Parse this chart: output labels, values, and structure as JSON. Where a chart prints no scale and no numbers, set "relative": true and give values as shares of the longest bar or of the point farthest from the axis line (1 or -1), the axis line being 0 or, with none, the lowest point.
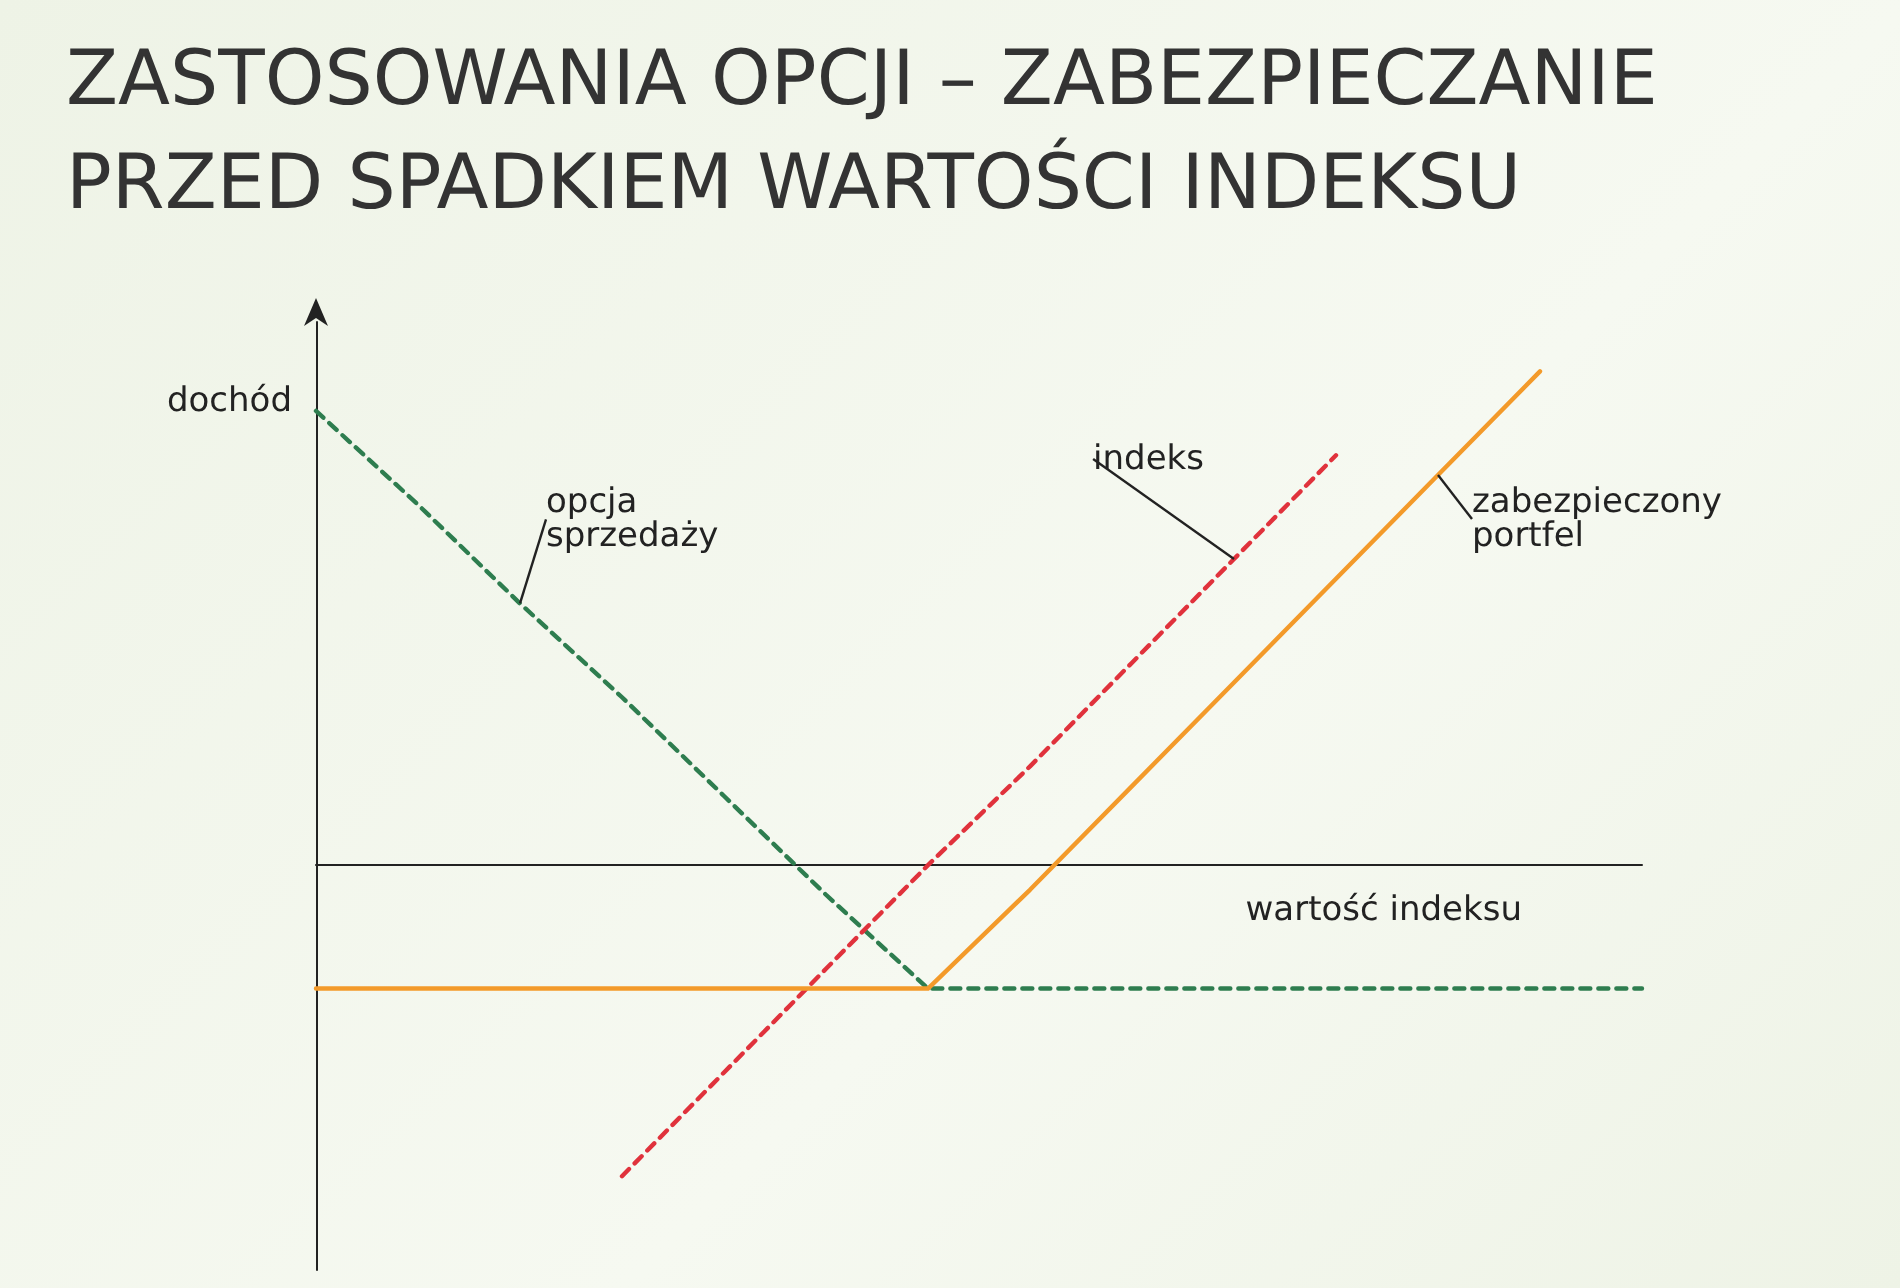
{
  "chart_data": {
    "type": "line",
    "title": "ZASTOSOWANIA OPCJI – ZABEZPIECZANIE PRZED SPADKIEM WARTOŚCI INDEKSU",
    "xlabel": "wartość indeksu",
    "ylabel": "dochód",
    "relative": true,
    "grid": false,
    "legend": false,
    "categories": [
      null,
      null,
      null,
      null,
      null,
      null,
      null,
      null,
      null,
      null,
      null,
      null,
      null,
      null
    ],
    "series": [
      {
        "name": "opcja sprzedaży",
        "color": "#2e7d4f",
        "line_style": "dashed",
        "values": [
          0.92,
          0.73,
          0.53,
          0.34,
          0.14,
          -0.06,
          -0.25,
          -0.25,
          -0.25,
          -0.25,
          -0.25,
          -0.25,
          -0.25,
          -0.25
        ]
      },
      {
        "name": "indeks",
        "color": "#e0323c",
        "line_style": "dashed",
        "values": [
          null,
          null,
          null,
          -0.63,
          -0.42,
          -0.21,
          0.0,
          0.2,
          0.41,
          0.62,
          0.83,
          null,
          null,
          null
        ]
      },
      {
        "name": "zabezpieczony portfel",
        "color": "#f39a2a",
        "line_style": "solid",
        "values": [
          -0.25,
          -0.25,
          -0.25,
          -0.25,
          -0.25,
          -0.25,
          -0.25,
          -0.05,
          0.16,
          0.37,
          0.58,
          0.79,
          1.0,
          null
        ]
      }
    ]
  }
}
